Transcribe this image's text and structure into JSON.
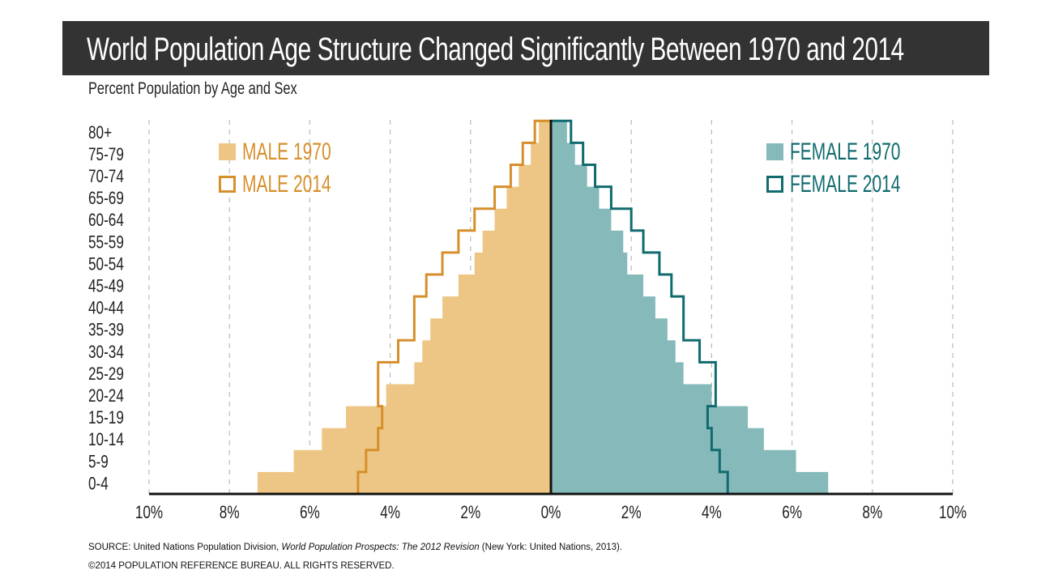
{
  "header": {
    "title": "World Population Age Structure Changed Significantly Between 1970 and 2014",
    "subtitle": "Percent Population by Age and Sex"
  },
  "chart_data": {
    "type": "bar",
    "orientation": "horizontal-population-pyramid",
    "categories": [
      "0-4",
      "5-9",
      "10-14",
      "15-19",
      "20-24",
      "25-29",
      "30-34",
      "35-39",
      "40-44",
      "45-49",
      "50-54",
      "55-59",
      "60-64",
      "65-69",
      "70-74",
      "75-79",
      "80+"
    ],
    "xlim": [
      -10,
      10
    ],
    "x_ticks": [
      "10%",
      "8%",
      "6%",
      "4%",
      "2%",
      "0%",
      "2%",
      "4%",
      "6%",
      "8%",
      "10%"
    ],
    "x_tick_values": [
      -10,
      -8,
      -6,
      -4,
      -2,
      0,
      2,
      4,
      6,
      8,
      10
    ],
    "grid": "vertical dashed",
    "legend_left": "top-left",
    "legend_right": "top-right",
    "series": [
      {
        "name": "MALE 1970",
        "side": "left",
        "style": "filled",
        "color": "#EDC685",
        "values": [
          7.3,
          6.4,
          5.7,
          5.1,
          4.1,
          3.4,
          3.2,
          3.0,
          2.7,
          2.3,
          1.9,
          1.7,
          1.4,
          1.1,
          0.8,
          0.5,
          0.3
        ]
      },
      {
        "name": "MALE 2014",
        "side": "left",
        "style": "outline",
        "color": "#D68F2B",
        "values": [
          4.8,
          4.6,
          4.3,
          4.2,
          4.3,
          4.3,
          3.8,
          3.4,
          3.4,
          3.1,
          2.7,
          2.3,
          1.9,
          1.4,
          1.0,
          0.7,
          0.4
        ]
      },
      {
        "name": "FEMALE 1970",
        "side": "right",
        "style": "filled",
        "color": "#86BABA",
        "values": [
          6.9,
          6.1,
          5.3,
          4.9,
          4.0,
          3.3,
          3.1,
          2.9,
          2.6,
          2.3,
          1.9,
          1.8,
          1.5,
          1.2,
          0.9,
          0.6,
          0.4
        ]
      },
      {
        "name": "FEMALE 2014",
        "side": "right",
        "style": "outline",
        "color": "#116B6E",
        "values": [
          4.4,
          4.2,
          4.0,
          3.9,
          4.1,
          4.1,
          3.7,
          3.3,
          3.3,
          3.0,
          2.7,
          2.3,
          2.0,
          1.5,
          1.1,
          0.8,
          0.5
        ]
      }
    ],
    "axis_color": "#111111",
    "grid_color": "#BBBBBB"
  },
  "footer": {
    "source_prefix": "SOURCE: United Nations Population Division, ",
    "source_title": "World Population Prospects: The 2012 Revision",
    "source_suffix": " (New York: United Nations, 2013).",
    "copyright": "©2014 POPULATION REFERENCE BUREAU. ALL RIGHTS RESERVED."
  }
}
